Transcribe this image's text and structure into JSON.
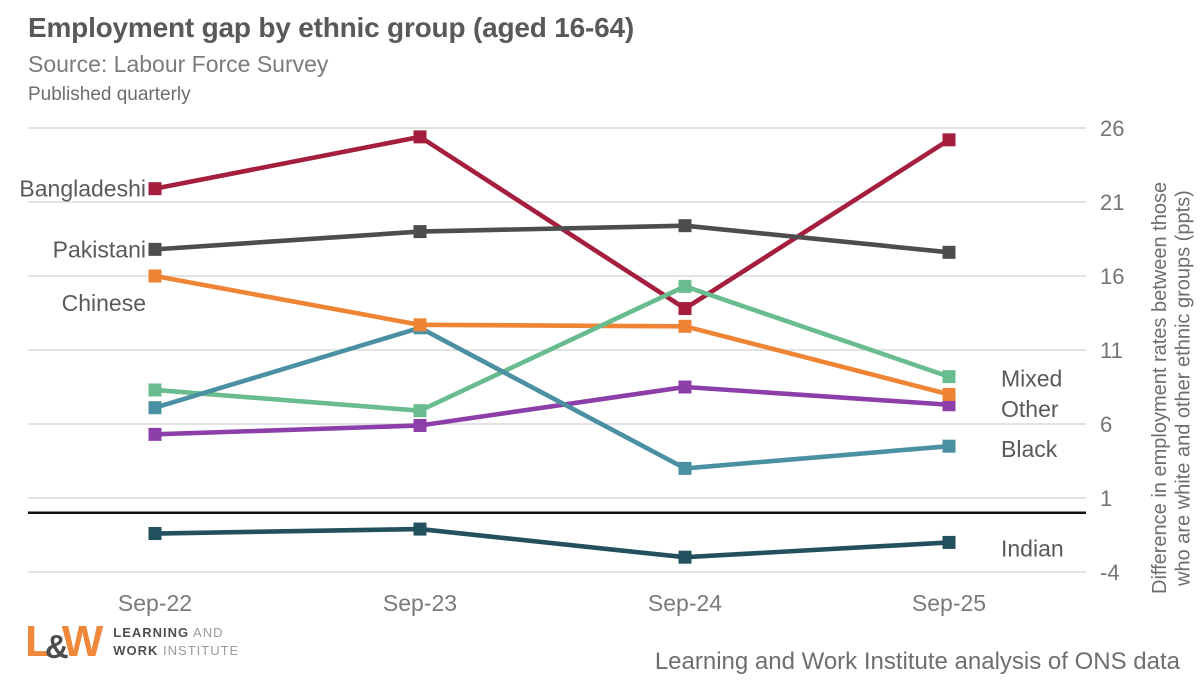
{
  "header": {
    "title": "Employment gap by ethnic group (aged 16-64)",
    "subtitle": "Source: Labour Force Survey",
    "frequency_note": "Published quarterly"
  },
  "chart_data": {
    "type": "line",
    "title": "Employment gap by ethnic group (aged 16-64)",
    "categories": [
      "Sep-22",
      "Sep-23",
      "Sep-24",
      "Sep-25"
    ],
    "series": [
      {
        "name": "Bangladeshi",
        "color": "#A51E3D",
        "values": [
          21.9,
          25.4,
          13.8,
          25.2
        ],
        "label_side": "left"
      },
      {
        "name": "Pakistani",
        "color": "#4D4D4D",
        "values": [
          17.8,
          19.0,
          19.4,
          17.6
        ],
        "label_side": "left"
      },
      {
        "name": "Chinese",
        "color": "#EE8434",
        "values": [
          16.0,
          12.7,
          12.6,
          8.0
        ],
        "label_side": "left"
      },
      {
        "name": "Mixed",
        "color": "#68BC8E",
        "values": [
          8.3,
          6.9,
          15.3,
          9.2
        ],
        "label_side": "right"
      },
      {
        "name": "Other",
        "color": "#8C3FA8",
        "values": [
          5.3,
          5.9,
          8.5,
          7.3
        ],
        "label_side": "right"
      },
      {
        "name": "Black",
        "color": "#4A90A2",
        "values": [
          7.1,
          12.5,
          3.0,
          4.5
        ],
        "label_side": "right"
      },
      {
        "name": "Indian",
        "color": "#23505F",
        "values": [
          -1.4,
          -1.1,
          -3.0,
          -2.0
        ],
        "label_side": "right"
      }
    ],
    "xlabel": "",
    "ylabel_line1": "Difference in employment rates between those",
    "ylabel_line2": "who are white and other ethnic groups (ppts)",
    "yticks": [
      26,
      21,
      16,
      11,
      6,
      1,
      -4
    ],
    "ylim": [
      -4,
      26
    ],
    "zero_line": 0,
    "grid": true,
    "legend_position": "inline-labels",
    "marker": "square",
    "colors": {
      "gridline": "#dadada",
      "zero_line": "#111111",
      "tick_label": "#757575",
      "x_label": "#7a7a7a",
      "series_label": "#595959"
    }
  },
  "footer": {
    "caption": "Learning and Work Institute analysis of ONS data",
    "logo": {
      "mark_l": "L",
      "mark_amp": "&",
      "mark_w": "W",
      "line1_bold": "LEARNING",
      "line1_rest": " AND",
      "line2_bold": "WORK",
      "line2_rest": " INSTITUTE",
      "brand_color": "#F0883B"
    }
  }
}
